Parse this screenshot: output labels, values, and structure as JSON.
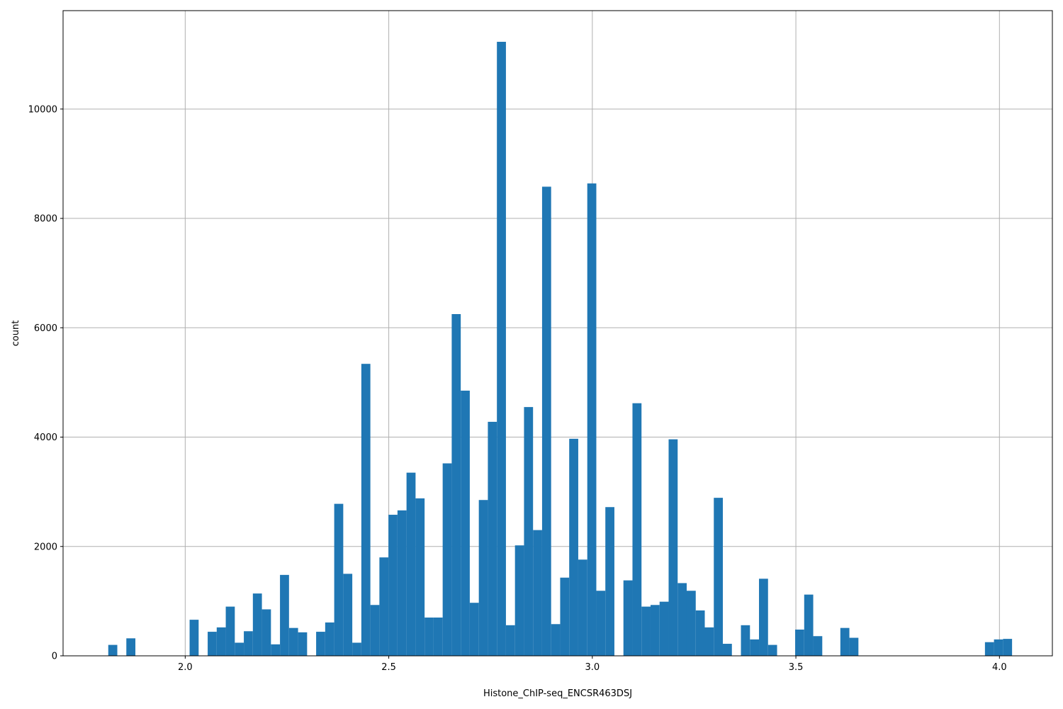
{
  "chart_data": {
    "type": "bar",
    "title": "",
    "xlabel": "Histone_ChIP-seq_ENCSR463DSJ",
    "ylabel": "count",
    "xlim": [
      1.7,
      4.13
    ],
    "ylim": [
      0,
      11800
    ],
    "xticks": [
      2.0,
      2.5,
      3.0,
      3.5,
      4.0
    ],
    "xtick_labels": [
      "2.0",
      "2.5",
      "3.0",
      "3.5",
      "4.0"
    ],
    "yticks": [
      0,
      2000,
      4000,
      6000,
      8000,
      10000
    ],
    "ytick_labels": [
      "0",
      "2000",
      "4000",
      "6000",
      "8000",
      "10000"
    ],
    "grid": true,
    "bar_color": "#1f77b4",
    "bin_start": 1.811,
    "bin_width": 0.0222,
    "counts": [
      200,
      0,
      320,
      0,
      0,
      0,
      0,
      0,
      0,
      660,
      0,
      440,
      520,
      900,
      240,
      450,
      1140,
      850,
      210,
      1480,
      510,
      430,
      0,
      440,
      610,
      2780,
      1500,
      240,
      5340,
      930,
      1800,
      2580,
      2660,
      3350,
      2880,
      700,
      700,
      3520,
      6250,
      4850,
      970,
      2850,
      4280,
      11230,
      560,
      2020,
      4550,
      2300,
      8580,
      580,
      1430,
      3970,
      1760,
      8640,
      1190,
      2720,
      0,
      1380,
      4620,
      900,
      930,
      990,
      3960,
      1330,
      1190,
      830,
      520,
      2890,
      220,
      0,
      560,
      300,
      1410,
      200,
      0,
      0,
      480,
      1120,
      360,
      0,
      0,
      510,
      330,
      0,
      0,
      0,
      0,
      0,
      0,
      0,
      0,
      0,
      0,
      0,
      0,
      0,
      0,
      250,
      300,
      310
    ]
  }
}
